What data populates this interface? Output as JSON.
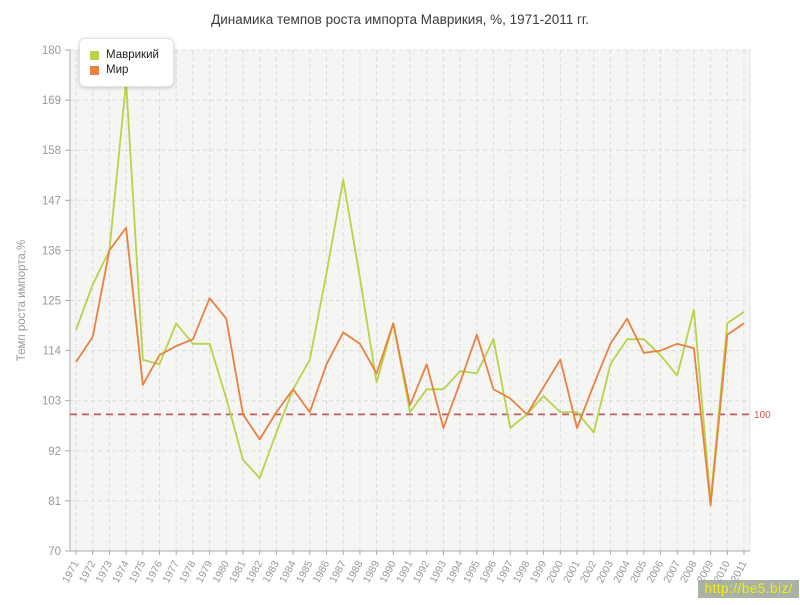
{
  "watermark": {
    "text": "http://be5.biz/"
  },
  "reference": {
    "label": "100",
    "value": 100,
    "line_color": "#b2605f",
    "label_color": "#cc5544"
  },
  "chart_data": {
    "type": "line",
    "title": "Динамика темпов роста импорта Маврикия, %, 1971-2011 гг.",
    "ylabel": "Темп роста импорта,%",
    "ylim": [
      70,
      180
    ],
    "yticks": [
      70,
      81,
      92,
      103,
      114,
      125,
      136,
      147,
      158,
      169,
      180
    ],
    "grid": "dashed",
    "legend_position": "top-left",
    "categories": [
      "1971",
      "1972",
      "1973",
      "1974",
      "1975",
      "1976",
      "1977",
      "1978",
      "1979",
      "1980",
      "1981",
      "1982",
      "1983",
      "1984",
      "1985",
      "1986",
      "1987",
      "1988",
      "1989",
      "1990",
      "1991",
      "1992",
      "1993",
      "1994",
      "1995",
      "1996",
      "1997",
      "1998",
      "1999",
      "2000",
      "2001",
      "2002",
      "2003",
      "2004",
      "2005",
      "2006",
      "2007",
      "2008",
      "2009",
      "2010",
      "2011"
    ],
    "series": [
      {
        "name": "Маврикий",
        "color": "#b5d448",
        "values": [
          118.5,
          128.5,
          136,
          173,
          112,
          111,
          120,
          115.5,
          115.5,
          103.5,
          90,
          86,
          96,
          105.5,
          112,
          131,
          151.5,
          130,
          107,
          120,
          100.5,
          105.5,
          105.5,
          109.5,
          109,
          116.5,
          97,
          100,
          104,
          100.5,
          100.5,
          96,
          111,
          116.5,
          116.5,
          113,
          108.5,
          123,
          81,
          120,
          122.5
        ]
      },
      {
        "name": "Мир",
        "color": "#e8823f",
        "values": [
          111.5,
          117,
          136,
          141,
          106.5,
          113,
          115,
          116.5,
          125.5,
          121,
          100,
          94.5,
          100.5,
          105.5,
          100.5,
          111,
          118,
          115.5,
          109,
          120,
          102,
          111,
          97,
          107,
          117.5,
          105.5,
          103.5,
          100,
          106,
          112,
          97,
          106.5,
          115.5,
          121,
          113.5,
          114,
          115.5,
          114.5,
          80,
          117.5,
          120
        ]
      }
    ]
  }
}
